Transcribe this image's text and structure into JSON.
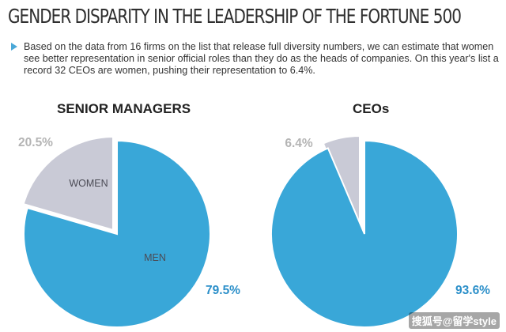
{
  "header": {
    "title": "GENDER DISPARITY IN THE LEADERSHIP OF THE FORTUNE 500",
    "description": "Based on the data from 16 firms on the list that release full diversity numbers, we can estimate that women see better representation in senior official roles than they do as the heads of companies. On this year's list a record 32 CEOs are women, pushing their representation to 6.4%."
  },
  "colors": {
    "men": "#39a7d8",
    "women": "#c9cad6",
    "text_gray": "#b4b4b4",
    "text_blue": "#2b8fc9"
  },
  "chart_data": [
    {
      "type": "pie",
      "title": "SENIOR MANAGERS",
      "slices": [
        {
          "label": "WOMEN",
          "value": 20.5,
          "value_label": "20.5%"
        },
        {
          "label": "MEN",
          "value": 79.5,
          "value_label": "79.5%"
        }
      ]
    },
    {
      "type": "pie",
      "title": "CEOs",
      "slices": [
        {
          "label": "",
          "value": 6.4,
          "value_label": "6.4%"
        },
        {
          "label": "",
          "value": 93.6,
          "value_label": "93.6%"
        }
      ]
    }
  ],
  "watermark": "搜狐号@留学style"
}
